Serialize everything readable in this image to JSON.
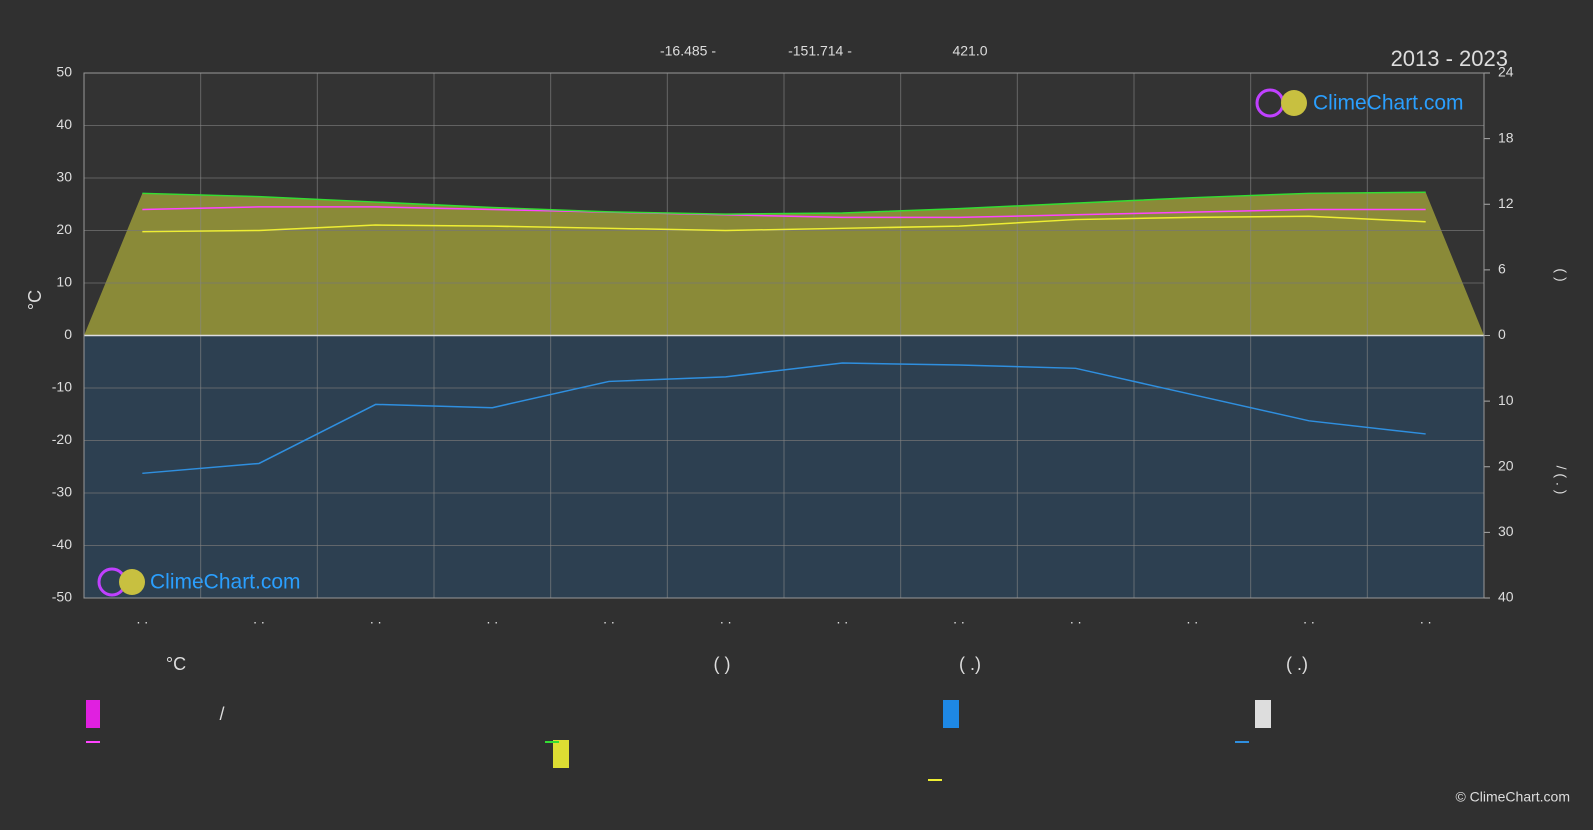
{
  "chart_data": {
    "type": "line",
    "header_texts": [
      "-16.485 -",
      "-151.714 -",
      "421.0"
    ],
    "title": "2013 - 2023",
    "watermark": "ClimeChart.com",
    "copyright": "© ClimeChart.com",
    "y_label": "°C",
    "y2_label": "(   )",
    "y3_label": "/ (  .  )",
    "categories": [
      ". .",
      ". .",
      ". .",
      ". .",
      ". .",
      ". .",
      ". .",
      ". .",
      ". .",
      ". .",
      ". .",
      ". ."
    ],
    "ylim": [
      -50,
      50
    ],
    "yticks": [
      -50,
      -40,
      -30,
      -20,
      -10,
      0,
      10,
      20,
      30,
      40,
      50
    ],
    "y2lim": [
      0,
      24
    ],
    "y2ticks": [
      0,
      6,
      12,
      18,
      24
    ],
    "y3lim": [
      0,
      40
    ],
    "y3ticks": [
      10,
      20,
      30,
      40
    ],
    "grid": true,
    "series": [
      {
        "name": "°C",
        "color": "#ff44ff",
        "values": [
          24,
          24.5,
          24.5,
          24,
          23.5,
          23,
          22.5,
          22.5,
          23,
          23.5,
          24,
          24
        ]
      },
      {
        "name": "(          )",
        "color": "#33dd33",
        "axis": "y2",
        "values": [
          13.0,
          12.7,
          12.2,
          11.7,
          11.3,
          11.1,
          11.2,
          11.6,
          12.1,
          12.6,
          13.0,
          13.1
        ]
      },
      {
        "name": "(   .)",
        "color": "#eeee33",
        "axis": "y2",
        "values": [
          9.5,
          9.6,
          10.1,
          10.0,
          9.8,
          9.6,
          9.8,
          10.0,
          10.6,
          10.8,
          10.9,
          10.4
        ]
      },
      {
        "name": "(   .)",
        "color": "#2f8fdf",
        "axis": "y3",
        "values": [
          21,
          19.5,
          10.5,
          11,
          7,
          6.3,
          4.2,
          4.5,
          5,
          9,
          13,
          15
        ]
      }
    ],
    "legend_extra": "/"
  }
}
